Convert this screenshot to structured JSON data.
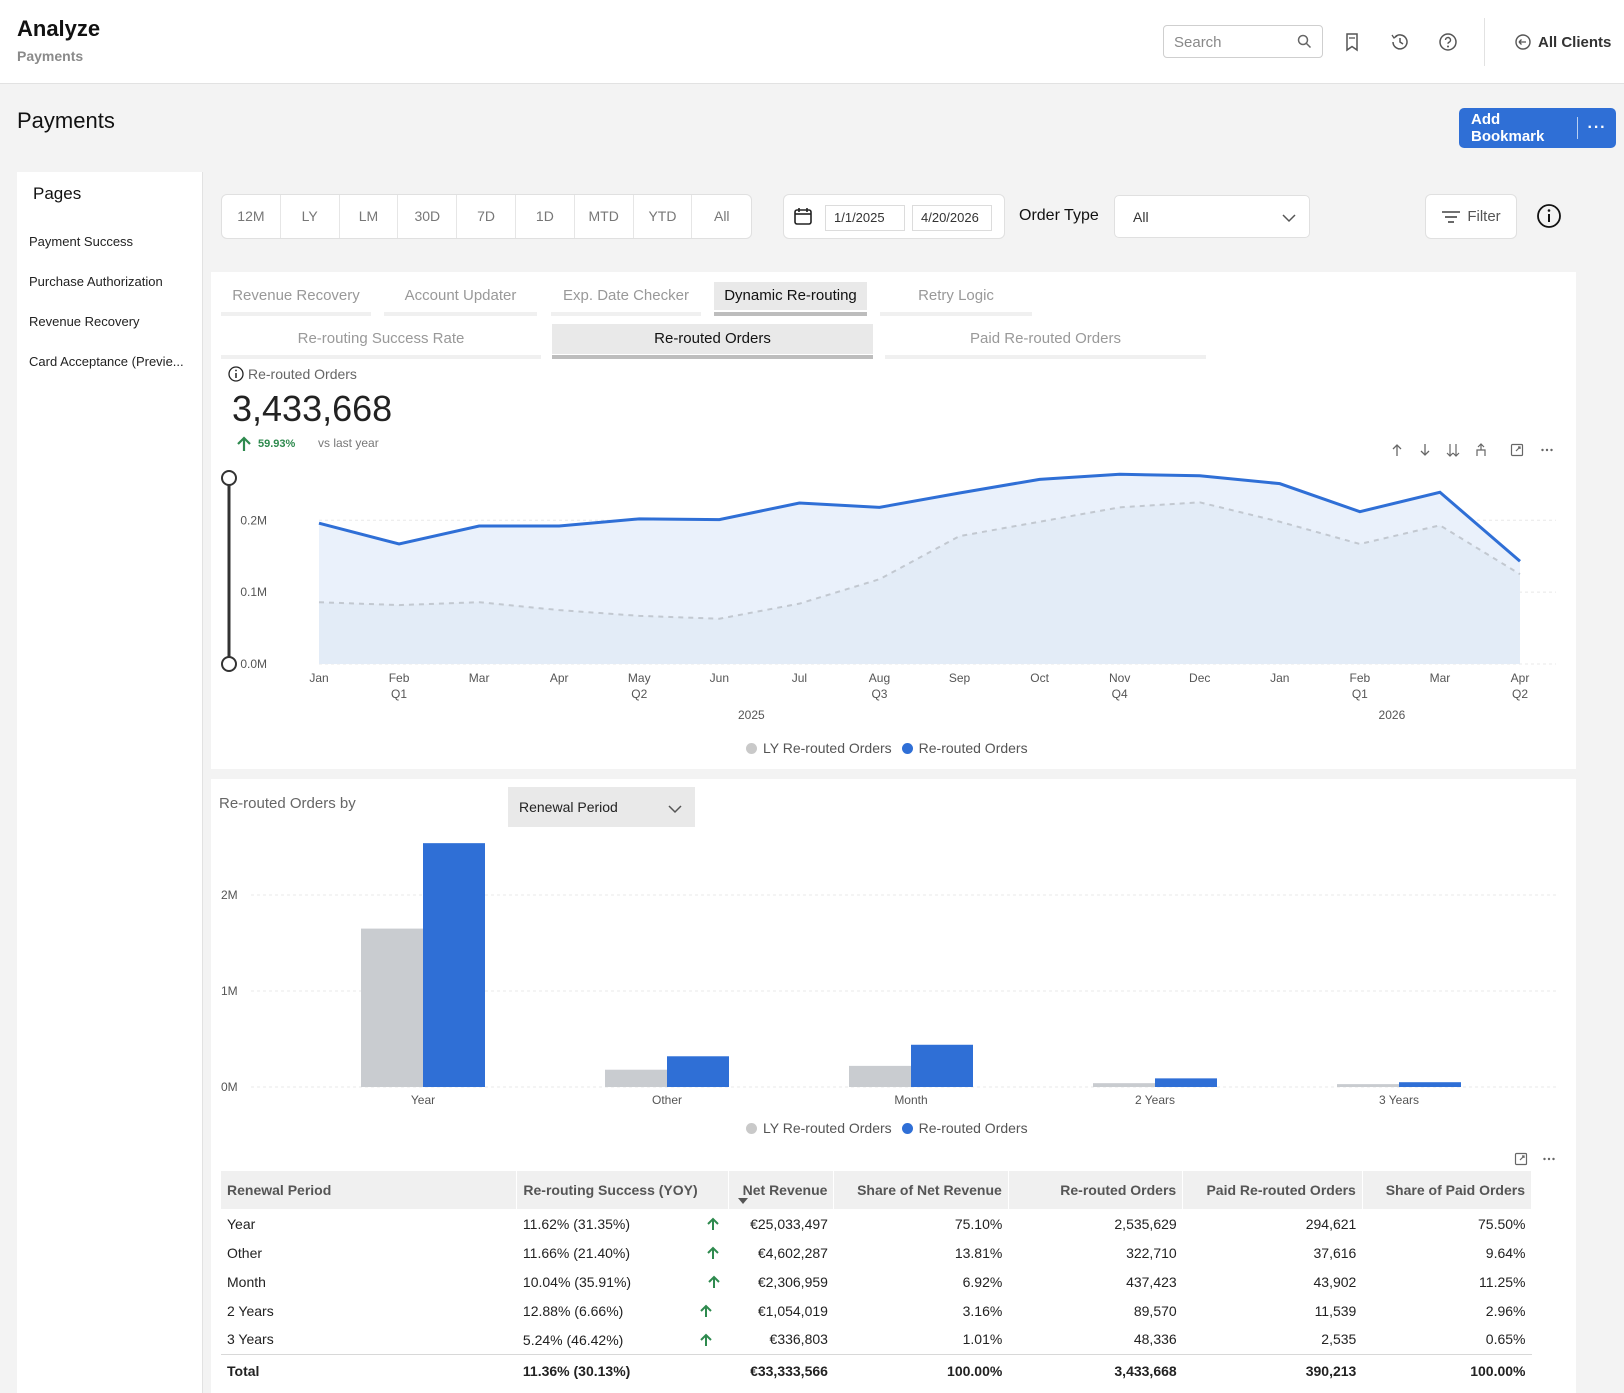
{
  "header": {
    "title": "Analyze",
    "subtitle": "Payments",
    "search_placeholder": "Search",
    "clients_label": "All Clients",
    "icons": [
      "bookmark-icon",
      "history-icon",
      "help-icon"
    ]
  },
  "page": {
    "title": "Payments",
    "add_bookmark_label": "Add Bookmark",
    "more_label": "···"
  },
  "sidebar": {
    "heading": "Pages",
    "items": [
      {
        "label": "Payment Success"
      },
      {
        "label": "Purchase Authorization"
      },
      {
        "label": "Revenue Recovery"
      },
      {
        "label": "Card Acceptance (Previe..."
      }
    ]
  },
  "filters": {
    "periods": [
      "12M",
      "LY",
      "LM",
      "30D",
      "7D",
      "1D",
      "MTD",
      "YTD",
      "All"
    ],
    "date_from": "1/1/2025",
    "date_to": "4/20/2026",
    "order_type_label": "Order Type",
    "order_type_value": "All",
    "filter_label": "Filter"
  },
  "tabs": [
    {
      "label": "Revenue Recovery"
    },
    {
      "label": "Account Updater"
    },
    {
      "label": "Exp. Date Checker"
    },
    {
      "label": "Dynamic Re-routing"
    },
    {
      "label": "Retry Logic"
    }
  ],
  "active_tab": 3,
  "subtabs": [
    {
      "label": "Re-routing Success Rate"
    },
    {
      "label": "Re-routed Orders"
    },
    {
      "label": "Paid Re-routed Orders"
    }
  ],
  "active_subtab": 1,
  "kpi": {
    "label": "Re-routed Orders",
    "value": "3,433,668",
    "change": "59.93%",
    "vs_label": "vs last year"
  },
  "chart_data": [
    {
      "type": "area",
      "title": "",
      "x": [
        "Jan",
        "Feb",
        "Mar",
        "Apr",
        "May",
        "Jun",
        "Jul",
        "Aug",
        "Sep",
        "Oct",
        "Nov",
        "Dec",
        "Jan",
        "Feb",
        "Mar",
        "Apr"
      ],
      "x_quarters": [
        "",
        "Q1",
        "",
        "",
        "Q2",
        "",
        "",
        "Q3",
        "",
        "",
        "Q4",
        "",
        "",
        "Q1",
        "",
        "Q2"
      ],
      "x_years": [
        {
          "label": "2025",
          "at": 5.5
        },
        {
          "label": "2026",
          "at": 13.5
        }
      ],
      "yticks": [
        "0.0M",
        "0.1M",
        "0.2M"
      ],
      "ylim": [
        0,
        0.27
      ],
      "series": [
        {
          "name": "LY Re-routed Orders",
          "color": "#c9c9c9",
          "values": [
            0.086,
            0.082,
            0.086,
            0.075,
            0.067,
            0.063,
            0.084,
            0.118,
            0.178,
            0.198,
            0.218,
            0.225,
            0.198,
            0.167,
            0.193,
            0.125
          ]
        },
        {
          "name": "Re-routed Orders",
          "color": "#2f6fd6",
          "values": [
            0.196,
            0.167,
            0.192,
            0.192,
            0.202,
            0.201,
            0.224,
            0.218,
            0.238,
            0.257,
            0.264,
            0.262,
            0.251,
            0.212,
            0.239,
            0.143
          ]
        }
      ],
      "legend": "bottom"
    },
    {
      "type": "bar",
      "title": "",
      "categories": [
        "Year",
        "Other",
        "Month",
        "2 Years",
        "3 Years"
      ],
      "yticks": [
        "0M",
        "1M",
        "2M"
      ],
      "ylim": [
        0,
        2.5
      ],
      "series": [
        {
          "name": "LY Re-routed Orders",
          "color": "#c9c9c9",
          "values": [
            1.65,
            0.18,
            0.22,
            0.04,
            0.03
          ]
        },
        {
          "name": "Re-routed Orders",
          "color": "#2f6fd6",
          "values": [
            2.54,
            0.32,
            0.44,
            0.09,
            0.05
          ]
        }
      ],
      "legend": "bottom"
    }
  ],
  "breakdown": {
    "label": "Re-routed Orders by",
    "select_value": "Renewal Period"
  },
  "table": {
    "columns": [
      "Renewal Period",
      "Re-routing Success (YOY)",
      "Net Revenue",
      "Share of Net Revenue",
      "Re-routed Orders",
      "Paid Re-routed Orders",
      "Share of Paid Orders"
    ],
    "rows": [
      [
        "Year",
        "11.62% (31.35%)",
        "€25,033,497",
        "75.10%",
        "2,535,629",
        "294,621",
        "75.50%"
      ],
      [
        "Other",
        "11.66% (21.40%)",
        "€4,602,287",
        "13.81%",
        "322,710",
        "37,616",
        "9.64%"
      ],
      [
        "Month",
        "10.04% (35.91%)",
        "€2,306,959",
        "6.92%",
        "437,423",
        "43,902",
        "11.25%"
      ],
      [
        "2 Years",
        "12.88% (6.66%)",
        "€1,054,019",
        "3.16%",
        "89,570",
        "11,539",
        "2.96%"
      ],
      [
        "3 Years",
        "5.24% (46.42%)",
        "€336,803",
        "1.01%",
        "48,336",
        "2,535",
        "0.65%"
      ]
    ],
    "total": [
      "Total",
      "11.36% (30.13%)",
      "€33,333,566",
      "100.00%",
      "3,433,668",
      "390,213",
      "100.00%"
    ]
  }
}
